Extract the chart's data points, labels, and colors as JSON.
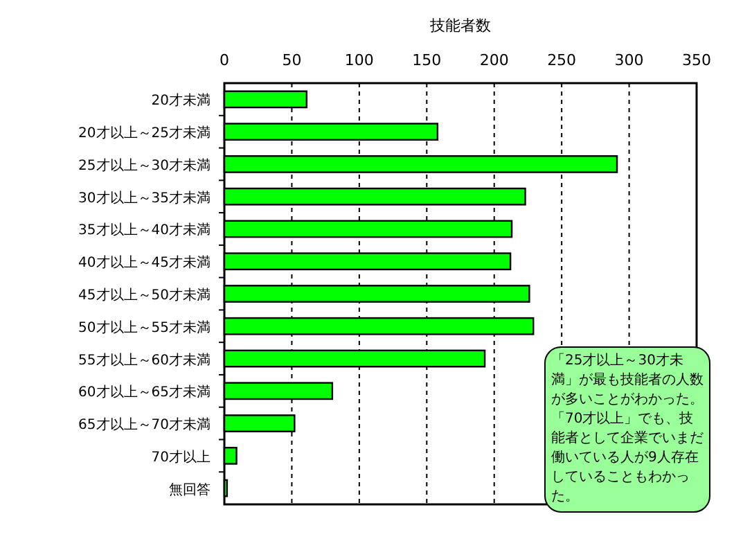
{
  "chart_data": {
    "type": "bar",
    "orientation": "horizontal",
    "xlabel": "技能者数",
    "categories": [
      "20才未満",
      "20才以上～25才未満",
      "25才以上～30才未満",
      "30才以上～35才未満",
      "35才以上～40才未満",
      "40才以上～45才未満",
      "45才以上～50才未満",
      "50才以上～55才未満",
      "55才以上～60才未満",
      "60才以上～65才未満",
      "65才以上～70才未満",
      "70才以上",
      "無回答"
    ],
    "values": [
      61,
      158,
      291,
      223,
      213,
      212,
      226,
      229,
      193,
      80,
      52,
      9,
      2
    ],
    "color": "#00ff00",
    "xlim": [
      0,
      350
    ],
    "xticks": [
      0,
      50,
      100,
      150,
      200,
      250,
      300,
      350
    ],
    "grid": "x",
    "annotations": [
      "「25才以上～30才未満」が最も技能者の人数が多いことがわかった。「70才以上」でも、技能者として企業でいまだ働いている人が9人存在していることもわかった。"
    ]
  }
}
